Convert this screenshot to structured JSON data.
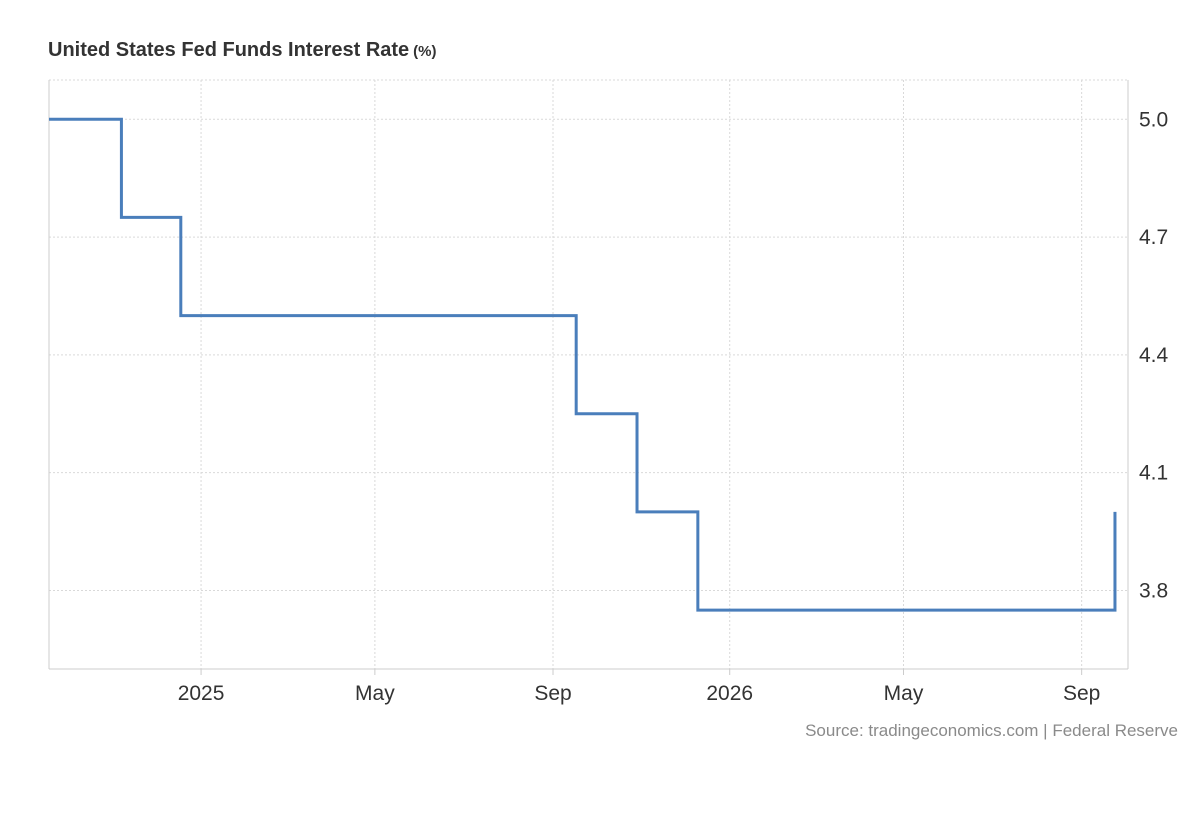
{
  "chart_data": {
    "type": "line",
    "step": "after",
    "title": "United States Fed Funds Interest Rate",
    "unit": "(%)",
    "source": "Source: tradingeconomics.com | Federal Reserve",
    "x_tick_labels": [
      {
        "date": "2025-01-01",
        "label": "2025"
      },
      {
        "date": "2025-05-01",
        "label": "May"
      },
      {
        "date": "2025-09-01",
        "label": "Sep"
      },
      {
        "date": "2026-01-01",
        "label": "2026"
      },
      {
        "date": "2026-05-01",
        "label": "May"
      },
      {
        "date": "2026-09-01",
        "label": "Sep"
      }
    ],
    "y_ticks": [
      3.8,
      4.1,
      4.4,
      4.7,
      5.0
    ],
    "y_tick_labels": [
      "3.8",
      "4.1",
      "4.4",
      "4.7",
      "5.0"
    ],
    "xlim": [
      "2024-09-18",
      "2026-10-03"
    ],
    "ylim": [
      3.6,
      5.1
    ],
    "y_axis_side": "right",
    "grid": true,
    "series": [
      {
        "color": "#4a7ebb",
        "x": [
          "2024-09-18",
          "2024-11-07",
          "2024-12-18",
          "2025-09-17",
          "2025-10-29",
          "2025-12-10",
          "2026-09-24"
        ],
        "values": [
          5.0,
          4.75,
          4.5,
          4.25,
          4.0,
          3.75,
          4.0
        ]
      }
    ]
  }
}
